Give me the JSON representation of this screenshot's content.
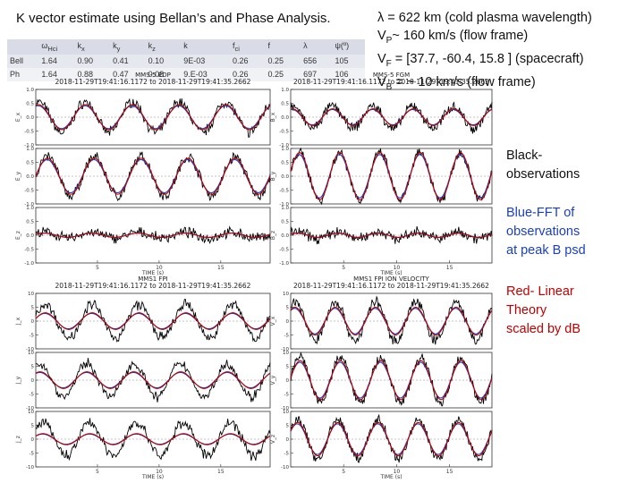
{
  "title": "K vector estimate using Bellan’s and Phase Analysis.",
  "table": {
    "headers": [
      "ω",
      "k",
      "k",
      "k",
      "k",
      "f",
      "f",
      "λ",
      "ψ(º)"
    ],
    "header_subs": [
      "Hci",
      "x",
      "y",
      "z",
      "",
      "ci",
      "",
      "",
      ""
    ],
    "rows": [
      {
        "label": "Bell",
        "values": [
          "1.64",
          "0.90",
          "0.41",
          "0.10",
          "9E-03",
          "0.26",
          "0.25",
          "656",
          "105"
        ]
      },
      {
        "label": "Ph",
        "values": [
          "1.64",
          "0.88",
          "0.47",
          "0.08",
          "9.E-03",
          "0.26",
          "0.25",
          "697",
          "106"
        ]
      }
    ]
  },
  "right_text": {
    "line1": "λ  = 622 km (cold plasma wavelength)",
    "line2_pre": "V",
    "line2_sub": "P",
    "line2_post": "~ 160 km/s (flow frame)",
    "line3_pre": "V",
    "line3_sub": "F",
    "line3_post": " = [37.7,  -60.4,   15.8 ] (spacecraft)",
    "line4_pre": "V",
    "line4_sub": "B",
    "line4_post": " = ~ 10 km/s (flow frame)"
  },
  "legend_notes": {
    "black": [
      "Black-",
      "observations"
    ],
    "blue": [
      "Blue-FFT of",
      "observations",
      " at peak B psd"
    ],
    "red": [
      "Red- Linear",
      "Theory",
      " scaled by dB"
    ]
  },
  "colors": {
    "observations": "#000000",
    "fft": "#1a3fc4",
    "theory": "#c00000"
  },
  "chart_data": [
    {
      "type": "line",
      "header": [
        "MMS-5 EDP",
        "2018-11-29T19:41:16.1172 to 2018-11-29T19:41:35.2662"
      ],
      "panels": [
        {
          "ylabel": "E_x",
          "ylim": [
            -1.0,
            1.0
          ],
          "yticks": [
            "1.0",
            "0.5",
            "0.0",
            "-0.5",
            "-1.0"
          ],
          "obs_amp": 0.55,
          "fit_amp": 0.45,
          "phase": 1.2
        },
        {
          "ylabel": "E_y",
          "ylim": [
            -1.0,
            1.0
          ],
          "yticks": [
            "1.0",
            "0.5",
            "0.0",
            "-0.5",
            "-1.0"
          ],
          "obs_amp": 0.7,
          "fit_amp": 0.65,
          "phase": 0.0
        },
        {
          "ylabel": "E_z",
          "ylim": [
            -1.0,
            1.0
          ],
          "yticks": [
            "1.0",
            "0.5",
            "0.0",
            "-0.5",
            "-1.0"
          ],
          "obs_amp": 0.1,
          "fit_amp": 0.08,
          "phase": 0.4
        }
      ],
      "xlabel": "TIME (s)",
      "xticks": [
        "5",
        "10",
        "15"
      ],
      "xlim": [
        0,
        19
      ],
      "cycles": 5
    },
    {
      "type": "line",
      "header": [
        "MMS-5 FGM",
        "2018-11-29T19:41:16.1172 to 2018-11-29T19:41:35.2662"
      ],
      "panels": [
        {
          "ylabel": "B_x",
          "ylim": [
            -1.0,
            1.0
          ],
          "yticks": [
            "1.0",
            "0.5",
            "0.0",
            "-0.5",
            "-1.0"
          ],
          "obs_amp": 0.4,
          "fit_amp": 0.3,
          "phase": 1.3
        },
        {
          "ylabel": "B_y",
          "ylim": [
            -1.0,
            1.0
          ],
          "yticks": [
            "1.0",
            "0.5",
            "0.0",
            "-0.5",
            "-1.0"
          ],
          "obs_amp": 0.85,
          "fit_amp": 0.85,
          "phase": 0.2
        },
        {
          "ylabel": "B_z",
          "ylim": [
            -1.0,
            1.0
          ],
          "yticks": [
            "1.0",
            "0.5",
            "0.0",
            "-0.5",
            "-1.0"
          ],
          "obs_amp": 0.12,
          "fit_amp": 0.08,
          "phase": 0.5
        }
      ],
      "xlabel": "TIME (s)",
      "xticks": [
        "5",
        "10",
        "15"
      ],
      "xlim": [
        0,
        19
      ],
      "cycles": 5
    },
    {
      "type": "line",
      "header": [
        "MMS1 FPI",
        "2018-11-29T19:41:16.1172 to 2018-11-29T19:41:35.2662"
      ],
      "panels": [
        {
          "ylabel": "J_x",
          "ylim": [
            -10,
            10
          ],
          "yticks": [
            "10",
            "5",
            "0",
            "-5",
            "-10"
          ],
          "obs_amp": 6,
          "fit_amp": 3,
          "phase": 0.3
        },
        {
          "ylabel": "J_y",
          "ylim": [
            -10,
            10
          ],
          "yticks": [
            "10",
            "5",
            "0",
            "-5",
            "-10"
          ],
          "obs_amp": 6,
          "fit_amp": 3,
          "phase": 1.0
        },
        {
          "ylabel": "J_z",
          "ylim": [
            -10,
            10
          ],
          "yticks": [
            "10",
            "5",
            "0",
            "-5",
            "-10"
          ],
          "obs_amp": 6,
          "fit_amp": 2,
          "phase": 0.6
        }
      ],
      "xlabel": "TIME (s)",
      "xticks": [
        "5",
        "10",
        "15"
      ],
      "xlim": [
        0,
        19
      ],
      "cycles": 5
    },
    {
      "type": "line",
      "header": [
        "MMS1 FPI ION VELOCITY",
        "2018-11-29T19:41:16.1172 to 2018-11-29T19:41:35.2662"
      ],
      "panels": [
        {
          "ylabel": "V_x",
          "ylim": [
            -10,
            10
          ],
          "yticks": [
            "10",
            "5",
            "0",
            "-5",
            "-10"
          ],
          "obs_amp": 7,
          "fit_amp": 5,
          "phase": 0.9
        },
        {
          "ylabel": "V_y",
          "ylim": [
            -10,
            10
          ],
          "yticks": [
            "10",
            "5",
            "0",
            "-5",
            "-10"
          ],
          "obs_amp": 8,
          "fit_amp": 7,
          "phase": 0.1
        },
        {
          "ylabel": "V_z",
          "ylim": [
            -10,
            10
          ],
          "yticks": [
            "10",
            "5",
            "0",
            "-5",
            "-10"
          ],
          "obs_amp": 7,
          "fit_amp": 6,
          "phase": 0.5
        }
      ],
      "xlabel": "TIME (s)",
      "xticks": [
        "5",
        "10",
        "15"
      ],
      "xlim": [
        0,
        19
      ],
      "cycles": 5
    }
  ]
}
